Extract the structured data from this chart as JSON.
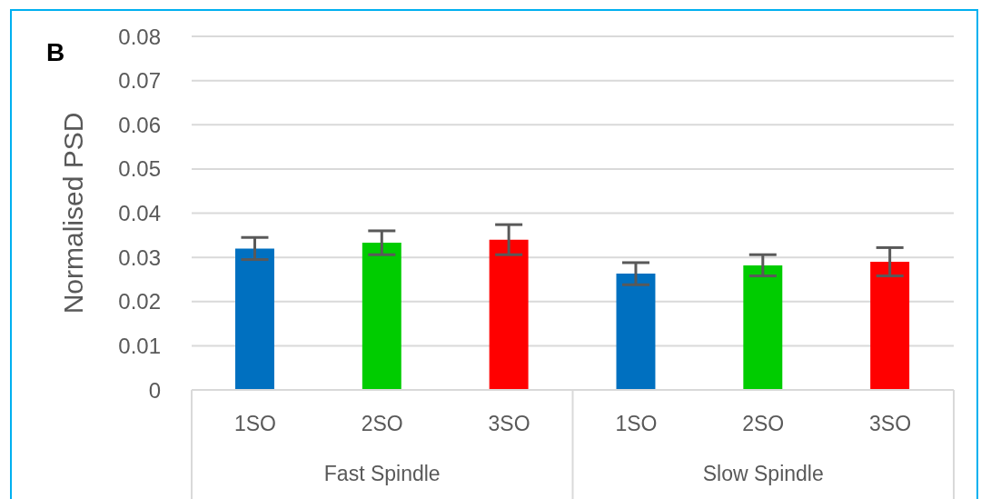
{
  "chart_data": {
    "type": "bar",
    "annotations": [
      "B"
    ],
    "ylabel": "Normalised PSD",
    "categories": [
      "Fast Spindle",
      "Slow Spindle"
    ],
    "series": [
      {
        "name": "1SO",
        "color": "#0070c0",
        "values": [
          0.032,
          0.0263
        ],
        "errors": [
          0.0025,
          0.0025
        ]
      },
      {
        "name": "2SO",
        "color": "#00cc00",
        "values": [
          0.0333,
          0.0282
        ],
        "errors": [
          0.0027,
          0.0024
        ]
      },
      {
        "name": "3SO",
        "color": "#ff0000",
        "values": [
          0.034,
          0.029
        ],
        "errors": [
          0.0034,
          0.0032
        ]
      }
    ],
    "ylim": [
      0,
      0.08
    ],
    "yticks": [
      0,
      0.01,
      0.02,
      0.03,
      0.04,
      0.05,
      0.06,
      0.07,
      0.08
    ],
    "grid": "y"
  }
}
